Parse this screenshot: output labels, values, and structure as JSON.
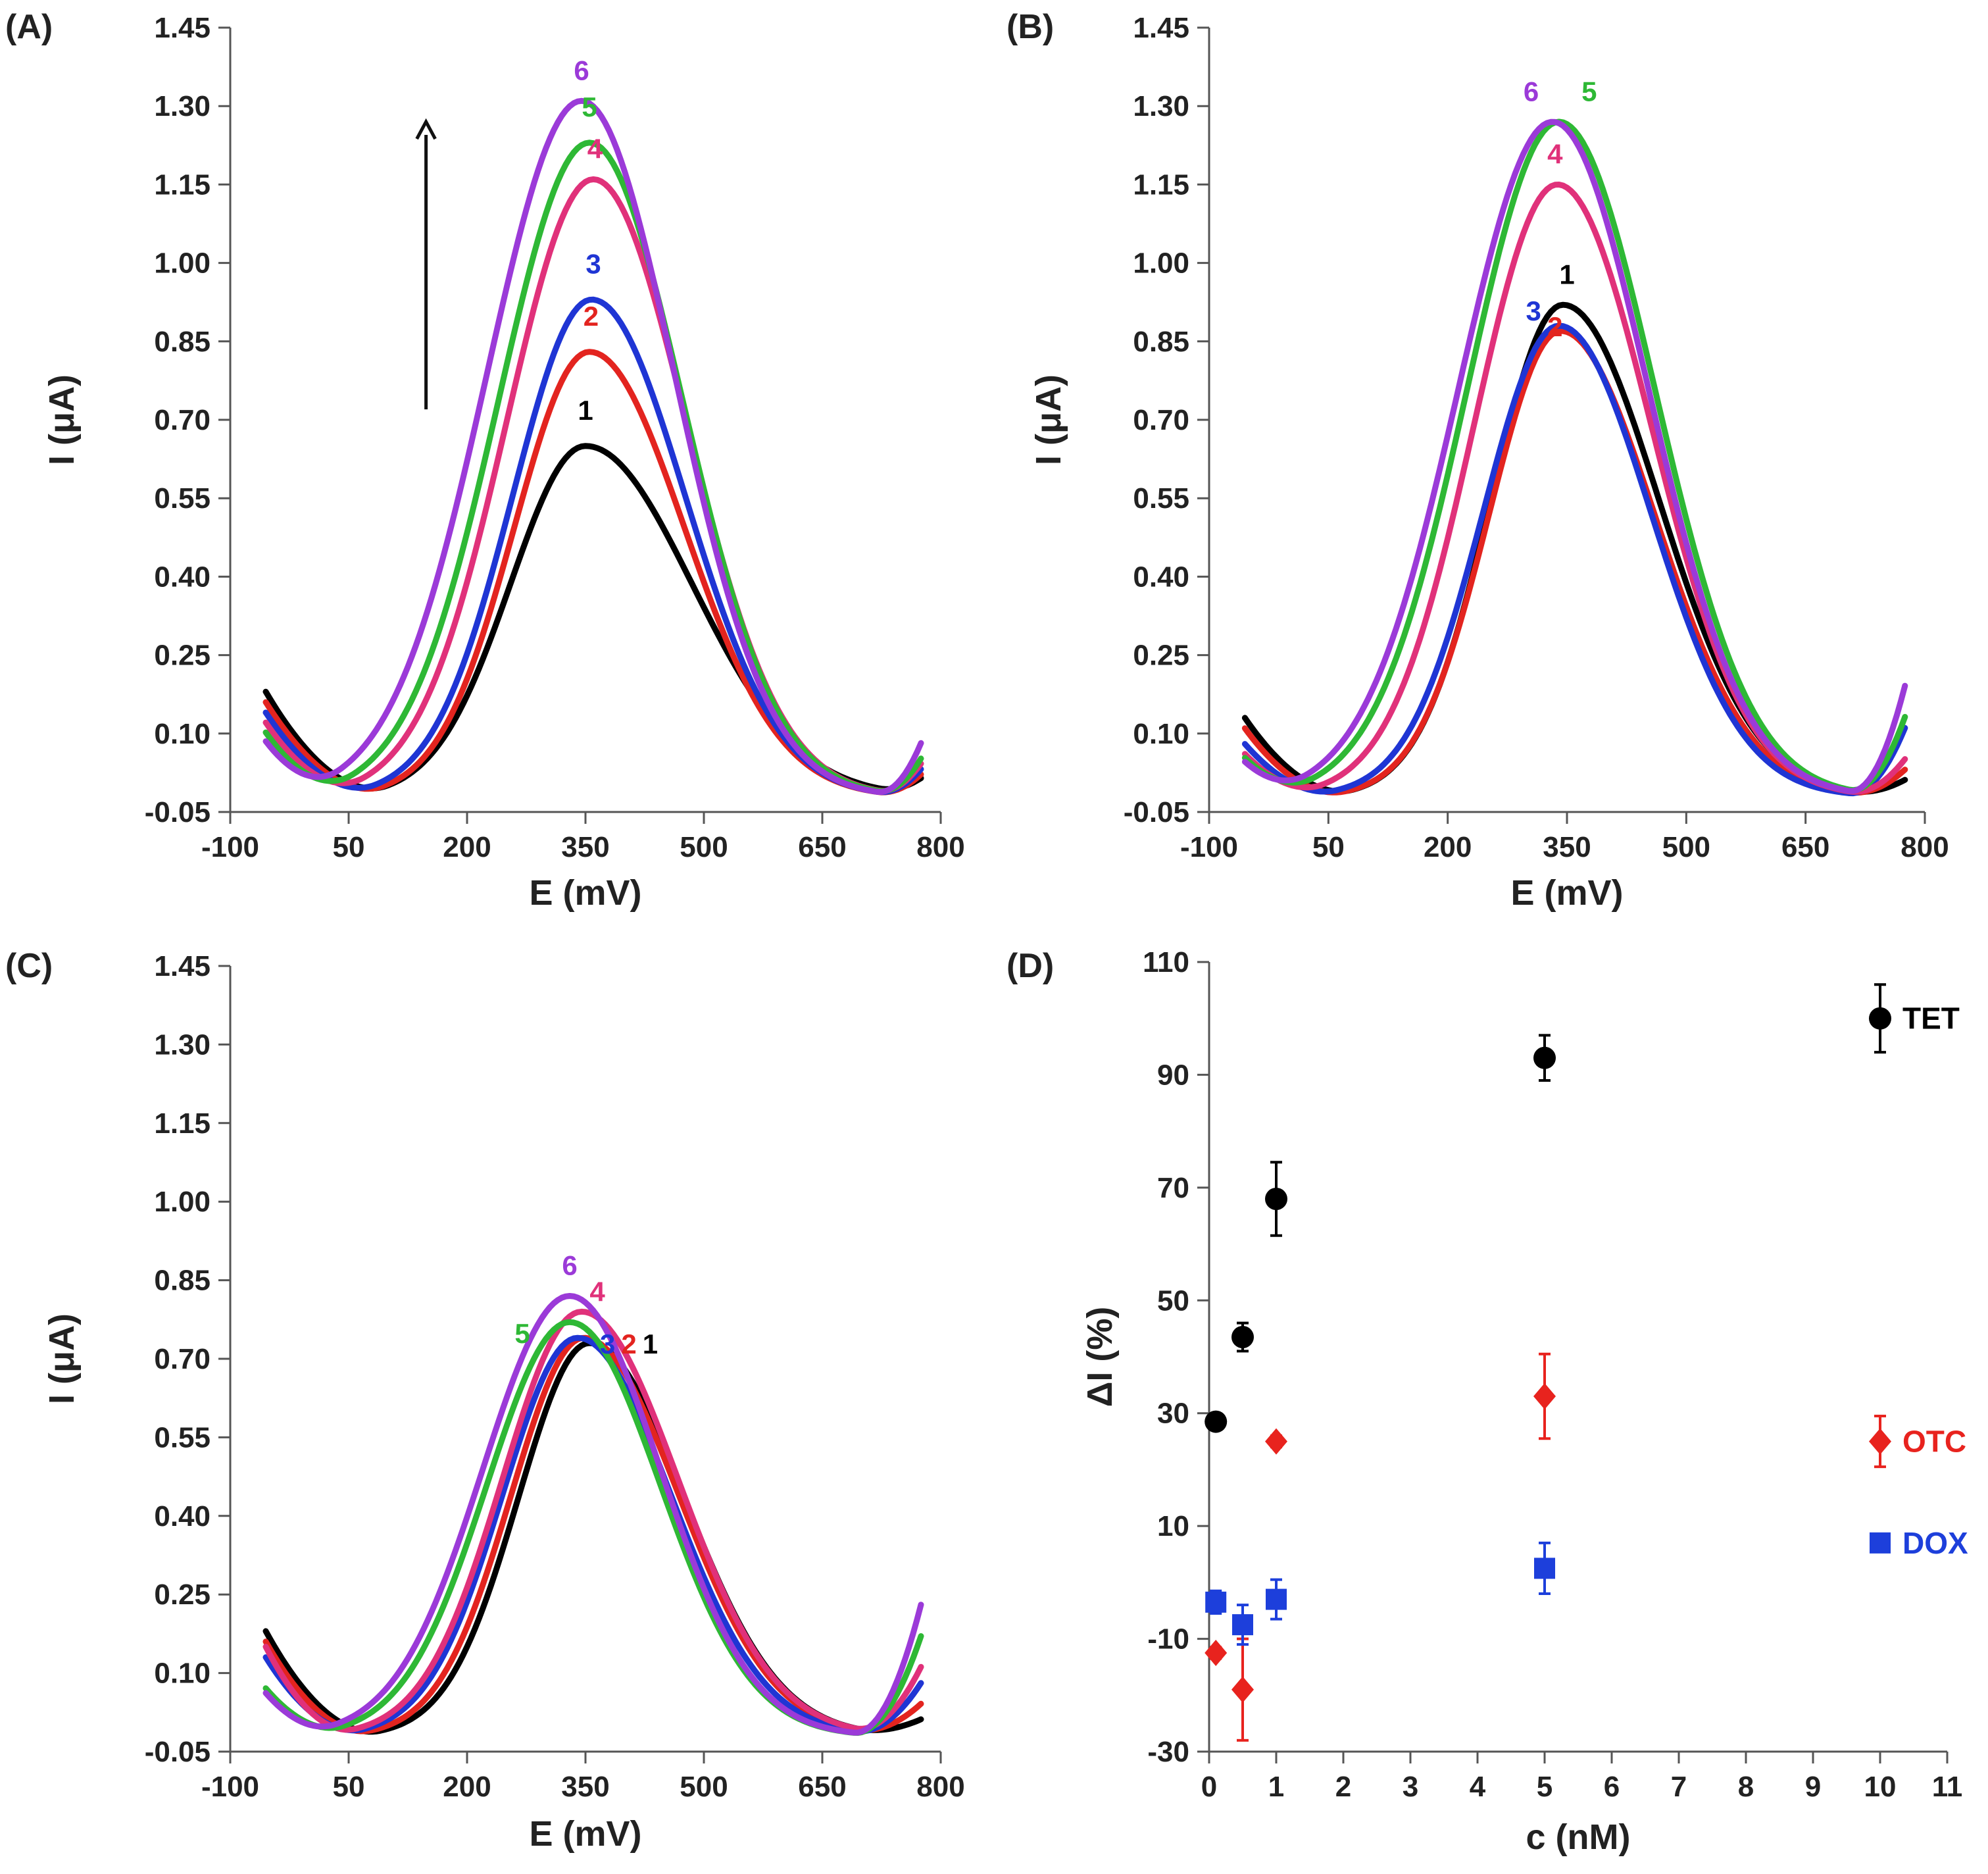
{
  "colors": {
    "c1": "#000000",
    "c2": "#e3241f",
    "c3": "#1f35d4",
    "c4": "#e0317a",
    "c5": "#2eb835",
    "c6": "#9b3ad8",
    "TET": "#000000",
    "OTC": "#e8231e",
    "DOX": "#1d3fdb"
  },
  "chart_data": [
    {
      "id": "A",
      "panel_label": "(A)",
      "type": "line",
      "xlabel": "E (mV)",
      "ylabel": "I (μA)",
      "xlim": [
        -100,
        800
      ],
      "ylim": [
        -0.05,
        1.45
      ],
      "xticks": [
        "-100",
        "50",
        "200",
        "350",
        "500",
        "650",
        "800"
      ],
      "yticks": [
        "-0.05",
        "0.10",
        "0.25",
        "0.40",
        "0.55",
        "0.70",
        "0.85",
        "1.00",
        "1.15",
        "1.30",
        "1.45"
      ],
      "arrow": "upward arrow indicating increasing peak current",
      "series": [
        {
          "name": "1",
          "color_key": "c1",
          "peak_x": 350,
          "peak_y": 0.67,
          "start_y": 0.18,
          "end_y": 0.01,
          "min_left_x": 100,
          "min_right_x": 720,
          "sigma_left": 95,
          "sigma_right": 135
        },
        {
          "name": "2",
          "color_key": "c2",
          "peak_x": 355,
          "peak_y": 0.85,
          "start_y": 0.16,
          "end_y": 0.02,
          "min_left_x": 95,
          "min_right_x": 720,
          "sigma_left": 95,
          "sigma_right": 120
        },
        {
          "name": "3",
          "color_key": "c3",
          "peak_x": 358,
          "peak_y": 0.95,
          "start_y": 0.14,
          "end_y": 0.03,
          "min_left_x": 85,
          "min_right_x": 720,
          "sigma_left": 100,
          "sigma_right": 118
        },
        {
          "name": "4",
          "color_key": "c4",
          "peak_x": 360,
          "peak_y": 1.18,
          "start_y": 0.12,
          "end_y": 0.04,
          "min_left_x": 70,
          "min_right_x": 720,
          "sigma_left": 110,
          "sigma_right": 118
        },
        {
          "name": "5",
          "color_key": "c5",
          "peak_x": 355,
          "peak_y": 1.25,
          "start_y": 0.1,
          "end_y": 0.05,
          "min_left_x": 55,
          "min_right_x": 720,
          "sigma_left": 115,
          "sigma_right": 118
        },
        {
          "name": "6",
          "color_key": "c6",
          "peak_x": 345,
          "peak_y": 1.33,
          "start_y": 0.08,
          "end_y": 0.08,
          "min_left_x": 40,
          "min_right_x": 720,
          "sigma_left": 120,
          "sigma_right": 118
        }
      ],
      "labels": [
        {
          "text": "1",
          "x": 350,
          "y": 0.7,
          "color_key": "c1"
        },
        {
          "text": "2",
          "x": 357,
          "y": 0.88,
          "color_key": "c2"
        },
        {
          "text": "3",
          "x": 360,
          "y": 0.98,
          "color_key": "c3"
        },
        {
          "text": "4",
          "x": 362,
          "y": 1.2,
          "color_key": "c4"
        },
        {
          "text": "5",
          "x": 355,
          "y": 1.28,
          "color_key": "c5"
        },
        {
          "text": "6",
          "x": 345,
          "y": 1.35,
          "color_key": "c6"
        }
      ]
    },
    {
      "id": "B",
      "panel_label": "(B)",
      "type": "line",
      "xlabel": "E (mV)",
      "ylabel": "I (μA)",
      "xlim": [
        -100,
        800
      ],
      "ylim": [
        -0.05,
        1.45
      ],
      "xticks": [
        "-100",
        "50",
        "200",
        "350",
        "500",
        "650",
        "800"
      ],
      "yticks": [
        "-0.05",
        "0.10",
        "0.25",
        "0.40",
        "0.55",
        "0.70",
        "0.85",
        "1.00",
        "1.15",
        "1.30",
        "1.45"
      ],
      "series": [
        {
          "name": "1",
          "color_key": "c1",
          "peak_x": 345,
          "peak_y": 0.94,
          "start_y": 0.13,
          "end_y": 0.01,
          "min_left_x": 80,
          "min_right_x": 705,
          "sigma_left": 90,
          "sigma_right": 120
        },
        {
          "name": "2",
          "color_key": "c2",
          "peak_x": 342,
          "peak_y": 0.89,
          "start_y": 0.11,
          "end_y": 0.03,
          "min_left_x": 70,
          "min_right_x": 705,
          "sigma_left": 90,
          "sigma_right": 118
        },
        {
          "name": "3",
          "color_key": "c3",
          "peak_x": 340,
          "peak_y": 0.9,
          "start_y": 0.08,
          "end_y": 0.11,
          "min_left_x": 60,
          "min_right_x": 705,
          "sigma_left": 95,
          "sigma_right": 115
        },
        {
          "name": "4",
          "color_key": "c4",
          "peak_x": 338,
          "peak_y": 1.17,
          "start_y": 0.06,
          "end_y": 0.05,
          "min_left_x": 45,
          "min_right_x": 705,
          "sigma_left": 105,
          "sigma_right": 118
        },
        {
          "name": "5",
          "color_key": "c5",
          "peak_x": 340,
          "peak_y": 1.29,
          "start_y": 0.05,
          "end_y": 0.13,
          "min_left_x": 35,
          "min_right_x": 705,
          "sigma_left": 115,
          "sigma_right": 120
        },
        {
          "name": "6",
          "color_key": "c6",
          "peak_x": 332,
          "peak_y": 1.29,
          "start_y": 0.04,
          "end_y": 0.19,
          "min_left_x": 25,
          "min_right_x": 705,
          "sigma_left": 118,
          "sigma_right": 120
        }
      ],
      "labels": [
        {
          "text": "1",
          "x": 350,
          "y": 0.96,
          "color_key": "c1"
        },
        {
          "text": "2",
          "x": 335,
          "y": 0.86,
          "color_key": "c2"
        },
        {
          "text": "3",
          "x": 308,
          "y": 0.89,
          "color_key": "c3"
        },
        {
          "text": "4",
          "x": 335,
          "y": 1.19,
          "color_key": "c4"
        },
        {
          "text": "5",
          "x": 378,
          "y": 1.31,
          "color_key": "c5"
        },
        {
          "text": "6",
          "x": 305,
          "y": 1.31,
          "color_key": "c6"
        }
      ]
    },
    {
      "id": "C",
      "panel_label": "(C)",
      "type": "line",
      "xlabel": "E (mV)",
      "ylabel": "I (μA)",
      "xlim": [
        -100,
        800
      ],
      "ylim": [
        -0.05,
        1.45
      ],
      "xticks": [
        "-100",
        "50",
        "200",
        "350",
        "500",
        "650",
        "800"
      ],
      "yticks": [
        "-0.05",
        "0.10",
        "0.25",
        "0.40",
        "0.55",
        "0.70",
        "0.85",
        "1.00",
        "1.15",
        "1.30",
        "1.45"
      ],
      "series": [
        {
          "name": "1",
          "color_key": "c1",
          "peak_x": 355,
          "peak_y": 0.75,
          "start_y": 0.18,
          "end_y": 0.01,
          "min_left_x": 90,
          "min_right_x": 690,
          "sigma_left": 90,
          "sigma_right": 120
        },
        {
          "name": "2",
          "color_key": "c2",
          "peak_x": 348,
          "peak_y": 0.76,
          "start_y": 0.16,
          "end_y": 0.04,
          "min_left_x": 80,
          "min_right_x": 690,
          "sigma_left": 92,
          "sigma_right": 120
        },
        {
          "name": "3",
          "color_key": "c3",
          "peak_x": 340,
          "peak_y": 0.76,
          "start_y": 0.13,
          "end_y": 0.08,
          "min_left_x": 70,
          "min_right_x": 690,
          "sigma_left": 95,
          "sigma_right": 118
        },
        {
          "name": "4",
          "color_key": "c4",
          "peak_x": 345,
          "peak_y": 0.81,
          "start_y": 0.15,
          "end_y": 0.11,
          "min_left_x": 60,
          "min_right_x": 690,
          "sigma_left": 100,
          "sigma_right": 122
        },
        {
          "name": "5",
          "color_key": "c5",
          "peak_x": 330,
          "peak_y": 0.79,
          "start_y": 0.07,
          "end_y": 0.17,
          "min_left_x": 45,
          "min_right_x": 690,
          "sigma_left": 105,
          "sigma_right": 115
        },
        {
          "name": "6",
          "color_key": "c6",
          "peak_x": 330,
          "peak_y": 0.84,
          "start_y": 0.06,
          "end_y": 0.23,
          "min_left_x": 35,
          "min_right_x": 690,
          "sigma_left": 110,
          "sigma_right": 115
        }
      ],
      "labels": [
        {
          "text": "1",
          "x": 432,
          "y": 0.71,
          "color_key": "c1"
        },
        {
          "text": "2",
          "x": 405,
          "y": 0.71,
          "color_key": "c2"
        },
        {
          "text": "3",
          "x": 378,
          "y": 0.71,
          "color_key": "c3"
        },
        {
          "text": "4",
          "x": 365,
          "y": 0.81,
          "color_key": "c4"
        },
        {
          "text": "5",
          "x": 270,
          "y": 0.73,
          "color_key": "c5"
        },
        {
          "text": "6",
          "x": 330,
          "y": 0.86,
          "color_key": "c6"
        }
      ]
    },
    {
      "id": "D",
      "panel_label": "(D)",
      "type": "scatter",
      "xlabel": "c (nM)",
      "ylabel": "ΔI (%)",
      "xlim": [
        0,
        11
      ],
      "ylim": [
        -30,
        110
      ],
      "xticks": [
        "0",
        "1",
        "2",
        "3",
        "4",
        "5",
        "6",
        "7",
        "8",
        "9",
        "10",
        "11"
      ],
      "yticks": [
        "-30",
        "-10",
        "10",
        "30",
        "50",
        "70",
        "90",
        "110"
      ],
      "series": [
        {
          "name": "TET",
          "color_key": "TET",
          "marker": "circle",
          "label_y": 100,
          "points": [
            {
              "x": 0.1,
              "y": 28.5,
              "err": 1.0
            },
            {
              "x": 0.5,
              "y": 43.5,
              "err": 2.5
            },
            {
              "x": 1,
              "y": 68,
              "err": 6.5
            },
            {
              "x": 5,
              "y": 93,
              "err": 4.0
            },
            {
              "x": 10,
              "y": 100,
              "err": 6.0
            }
          ]
        },
        {
          "name": "OTC",
          "color_key": "OTC",
          "marker": "diamond",
          "label_y": 25,
          "points": [
            {
              "x": 0.1,
              "y": -12.5,
              "err": 1.0
            },
            {
              "x": 0.5,
              "y": -19,
              "err": 9.0
            },
            {
              "x": 1,
              "y": 25,
              "err": 1.0
            },
            {
              "x": 5,
              "y": 33,
              "err": 7.5
            },
            {
              "x": 10,
              "y": 25,
              "err": 4.5
            }
          ]
        },
        {
          "name": "DOX",
          "color_key": "DOX",
          "marker": "square",
          "label_y": 7,
          "points": [
            {
              "x": 0.1,
              "y": -3.5,
              "err": 2.0
            },
            {
              "x": 0.5,
              "y": -7.5,
              "err": 3.5
            },
            {
              "x": 1,
              "y": -3,
              "err": 3.5
            },
            {
              "x": 5,
              "y": 2.5,
              "err": 4.5
            },
            {
              "x": 10,
              "y": 7,
              "err": 1.5
            }
          ]
        }
      ]
    }
  ]
}
